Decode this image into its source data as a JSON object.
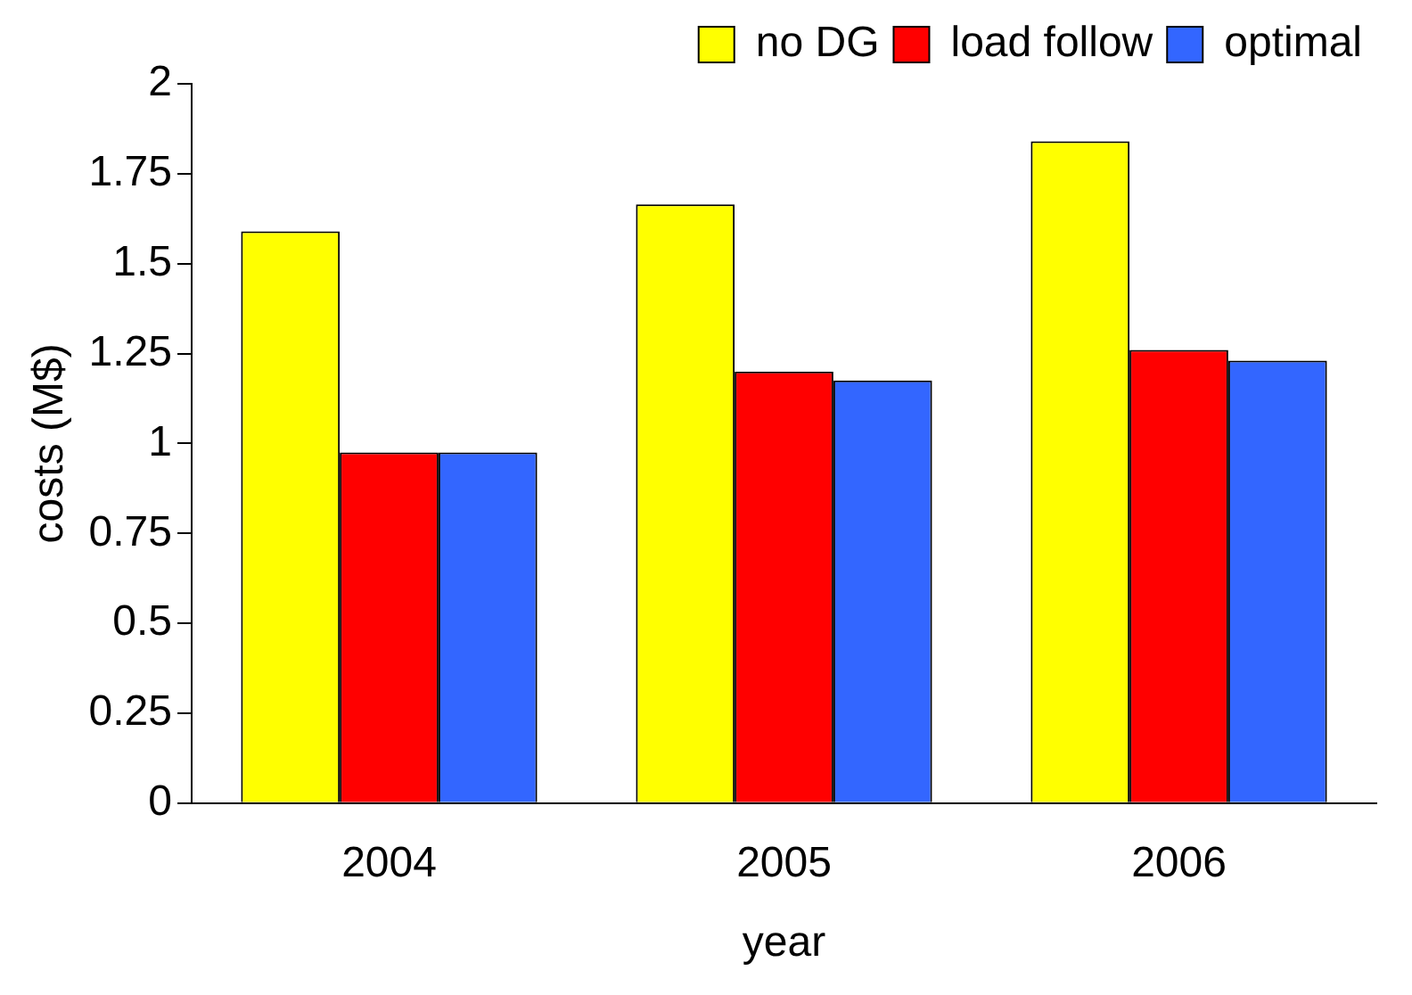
{
  "chart_data": {
    "type": "bar",
    "xlabel": "year",
    "ylabel": "costs (M$)",
    "categories": [
      "2004",
      "2005",
      "2006"
    ],
    "series": [
      {
        "name": "no DG",
        "color": "#ffff00",
        "values": [
          1.59,
          1.665,
          1.84
        ]
      },
      {
        "name": "load follow",
        "color": "#ff0000",
        "values": [
          0.975,
          1.2,
          1.26
        ]
      },
      {
        "name": "optimal",
        "color": "#3366ff",
        "values": [
          0.975,
          1.175,
          1.23
        ]
      }
    ],
    "ylim": [
      0,
      2
    ],
    "yticks": [
      0,
      0.25,
      0.5,
      0.75,
      1,
      1.25,
      1.5,
      1.75,
      2
    ],
    "legend": "top right"
  }
}
